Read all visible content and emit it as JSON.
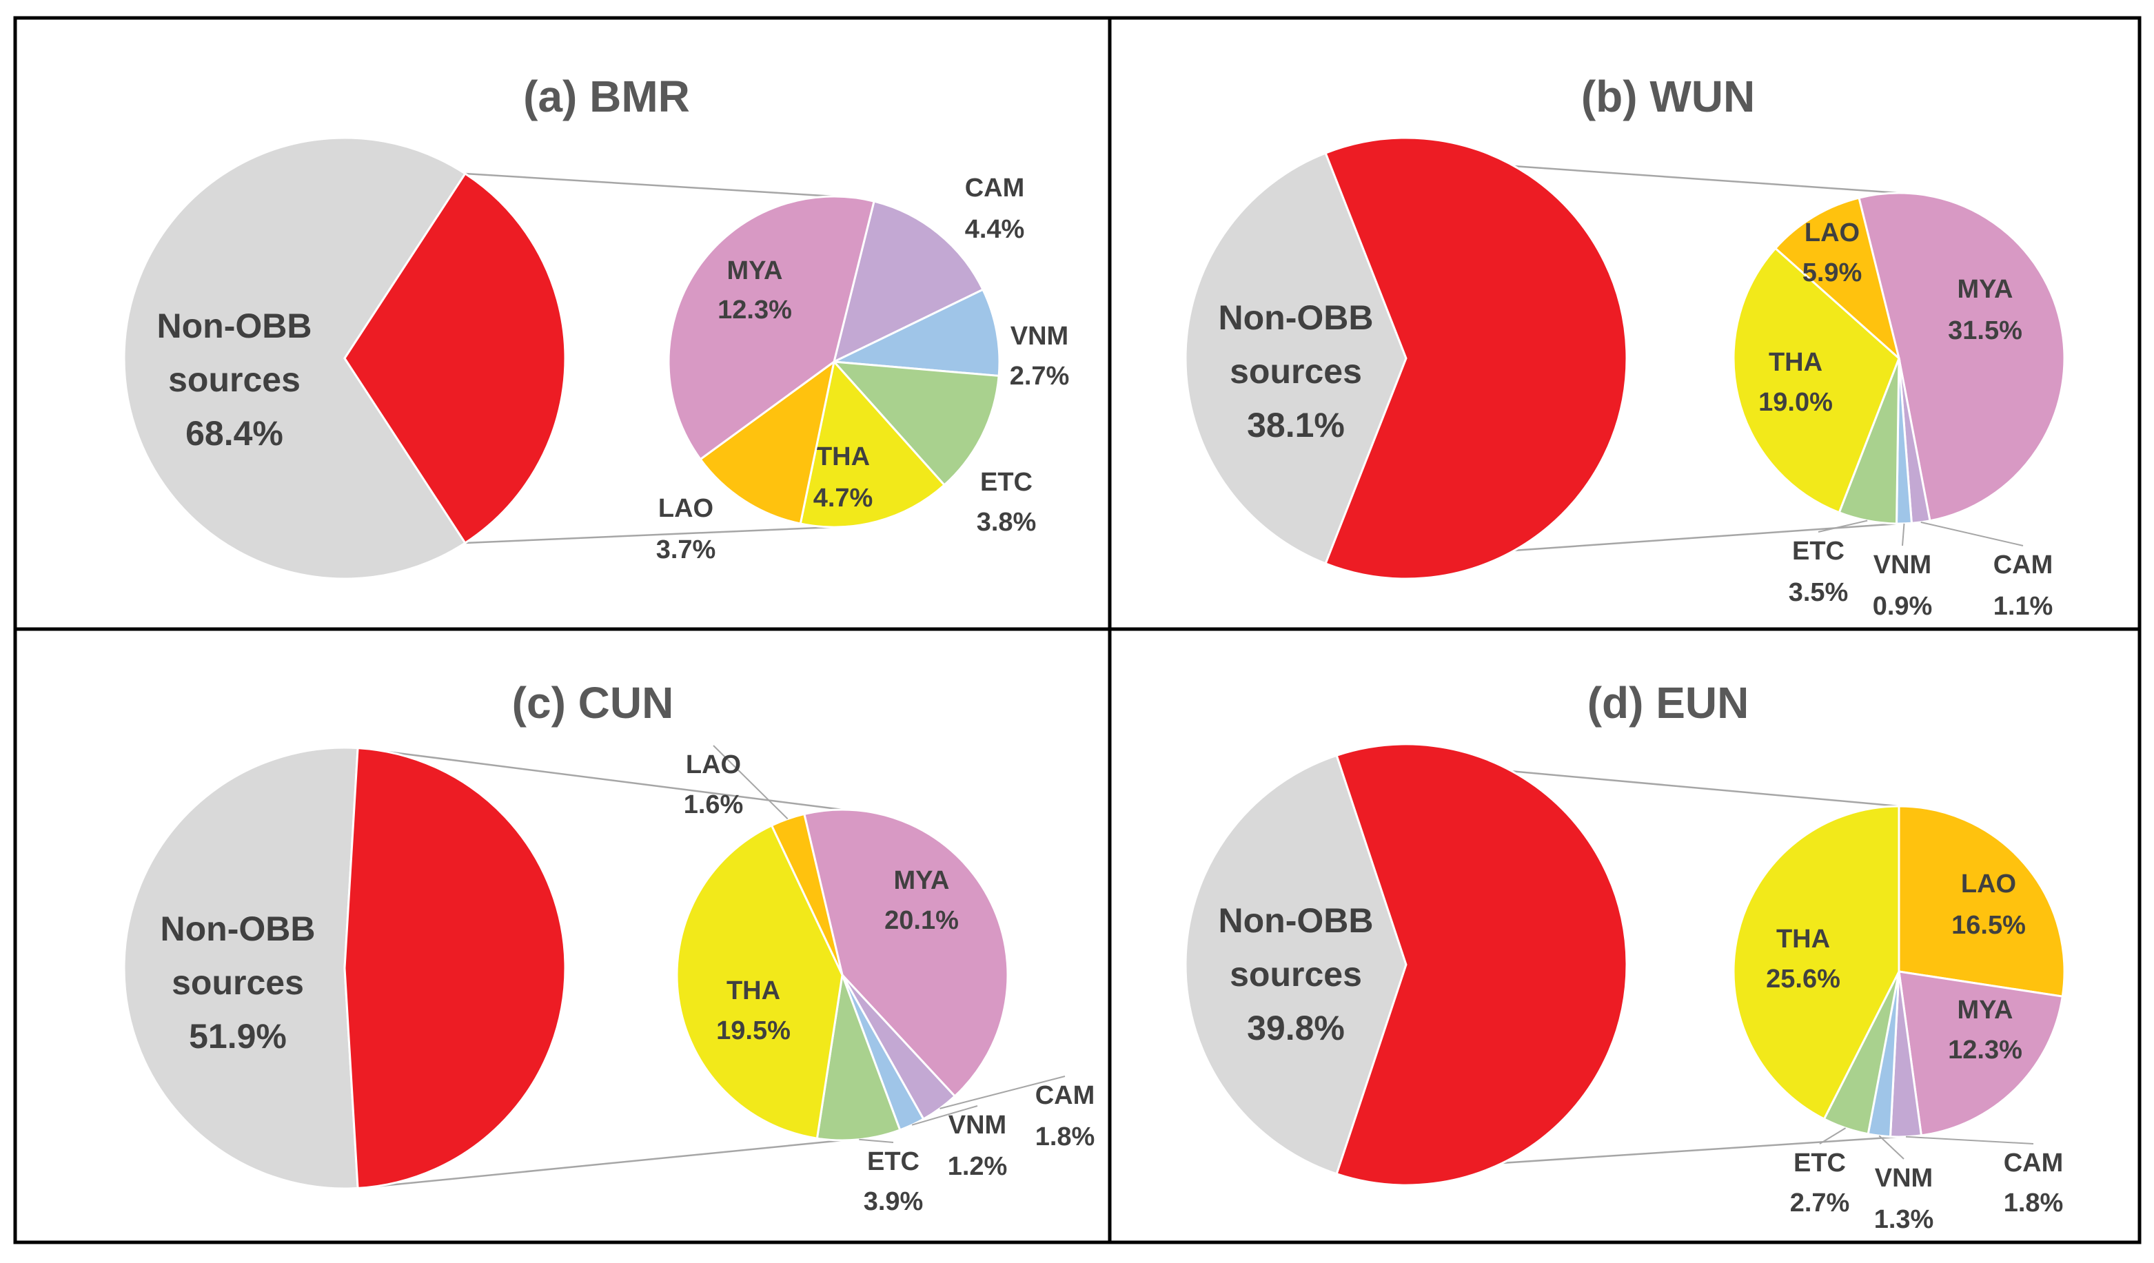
{
  "colors": {
    "nonobb": "#d9d9d9",
    "obb": "#ed1c24",
    "MYA": "#d899c4",
    "CAM": "#c3a8d3",
    "VNM": "#9fc5e8",
    "ETC": "#a9d18e",
    "THA": "#f2e91a",
    "LAO": "#ffc20e",
    "border": "#000000",
    "connector": "#a6a6a6"
  },
  "chart_data": [
    {
      "type": "pie",
      "title": "(a) BMR",
      "main": {
        "label_lines": [
          "Non-OBB",
          "sources",
          "68.4%"
        ],
        "value": 68.4
      },
      "breakdown": [
        {
          "name": "CAM",
          "label": "4.4%",
          "value": 4.4
        },
        {
          "name": "VNM",
          "label": "2.7%",
          "value": 2.7
        },
        {
          "name": "ETC",
          "label": "3.8%",
          "value": 3.8
        },
        {
          "name": "THA",
          "label": "4.7%",
          "value": 4.7
        },
        {
          "name": "LAO",
          "label": "3.7%",
          "value": 3.7
        },
        {
          "name": "MYA",
          "label": "12.3%",
          "value": 12.3
        }
      ]
    },
    {
      "type": "pie",
      "title": "(b) WUN",
      "main": {
        "label_lines": [
          "Non-OBB",
          "sources",
          "38.1%"
        ],
        "value": 38.1
      },
      "breakdown": [
        {
          "name": "MYA",
          "label": "31.5%",
          "value": 31.5
        },
        {
          "name": "CAM",
          "label": "1.1%",
          "value": 1.1
        },
        {
          "name": "VNM",
          "label": "0.9%",
          "value": 0.9
        },
        {
          "name": "ETC",
          "label": "3.5%",
          "value": 3.5
        },
        {
          "name": "THA",
          "label": "19.0%",
          "value": 19.0
        },
        {
          "name": "LAO",
          "label": "5.9%",
          "value": 5.9
        }
      ]
    },
    {
      "type": "pie",
      "title": "(c) CUN",
      "main": {
        "label_lines": [
          "Non-OBB",
          "sources",
          "51.9%"
        ],
        "value": 51.9
      },
      "breakdown": [
        {
          "name": "MYA",
          "label": "20.1%",
          "value": 20.1
        },
        {
          "name": "CAM",
          "label": "1.8%",
          "value": 1.8
        },
        {
          "name": "VNM",
          "label": "1.2%",
          "value": 1.2
        },
        {
          "name": "ETC",
          "label": "3.9%",
          "value": 3.9
        },
        {
          "name": "THA",
          "label": "19.5%",
          "value": 19.5
        },
        {
          "name": "LAO",
          "label": "1.6%",
          "value": 1.6
        }
      ]
    },
    {
      "type": "pie",
      "title": "(d) EUN",
      "main": {
        "label_lines": [
          "Non-OBB",
          "sources",
          "39.8%"
        ],
        "value": 39.8
      },
      "breakdown": [
        {
          "name": "LAO",
          "label": "16.5%",
          "value": 16.5
        },
        {
          "name": "MYA",
          "label": "12.3%",
          "value": 12.3
        },
        {
          "name": "CAM",
          "label": "1.8%",
          "value": 1.8
        },
        {
          "name": "VNM",
          "label": "1.3%",
          "value": 1.3
        },
        {
          "name": "ETC",
          "label": "2.7%",
          "value": 2.7
        },
        {
          "name": "THA",
          "label": "25.6%",
          "value": 25.6
        }
      ]
    }
  ]
}
